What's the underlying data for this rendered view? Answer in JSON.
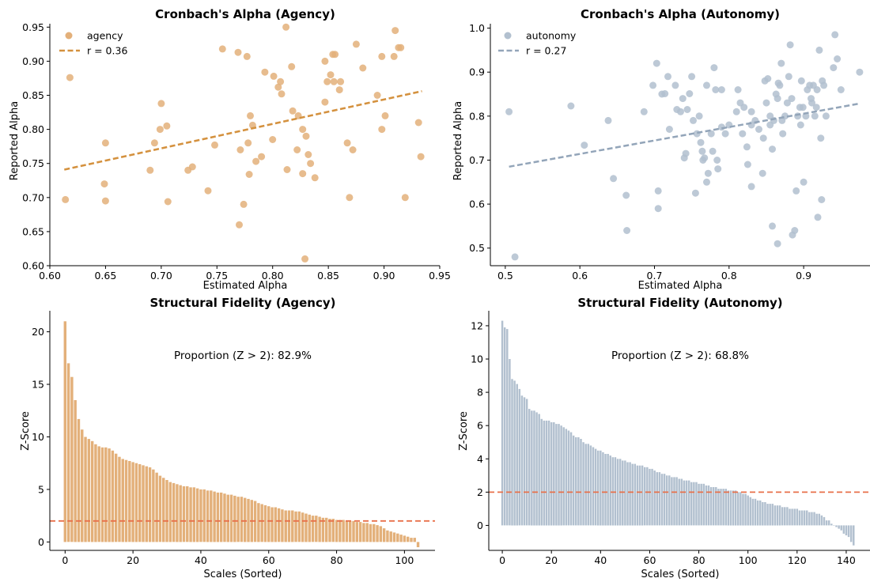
{
  "colors": {
    "agency": "#e3b07a",
    "agency_line": "#d4913e",
    "autonomy": "#b2c0cf",
    "autonomy_line": "#93a5b9",
    "threshold": "#e8704a"
  },
  "chart_data": [
    {
      "id": "alpha_agency",
      "type": "scatter",
      "title": "Cronbach's Alpha (Agency)",
      "xlabel": "Estimated Alpha",
      "ylabel": "Reported Alpha",
      "xlim": [
        0.6,
        0.95
      ],
      "ylim": [
        0.6,
        0.955
      ],
      "xticks": [
        0.6,
        0.65,
        0.7,
        0.75,
        0.8,
        0.85,
        0.9,
        0.95
      ],
      "xtick_labels": [
        "0.60",
        "0.65",
        "0.70",
        "0.75",
        "0.80",
        "0.85",
        "0.90",
        "0.95"
      ],
      "yticks": [
        0.6,
        0.65,
        0.7,
        0.75,
        0.8,
        0.85,
        0.9,
        0.95
      ],
      "ytick_labels": [
        "0.60",
        "0.65",
        "0.70",
        "0.75",
        "0.80",
        "0.85",
        "0.90",
        "0.95"
      ],
      "legend": {
        "position": "top-left",
        "scatter_label": "agency",
        "line_label": "r = 0.36"
      },
      "grid": false,
      "points": [
        [
          0.614,
          0.697
        ],
        [
          0.618,
          0.876
        ],
        [
          0.649,
          0.72
        ],
        [
          0.65,
          0.78
        ],
        [
          0.65,
          0.695
        ],
        [
          0.69,
          0.74
        ],
        [
          0.694,
          0.78
        ],
        [
          0.699,
          0.8
        ],
        [
          0.7,
          0.838
        ],
        [
          0.705,
          0.805
        ],
        [
          0.706,
          0.694
        ],
        [
          0.724,
          0.74
        ],
        [
          0.728,
          0.745
        ],
        [
          0.742,
          0.71
        ],
        [
          0.748,
          0.777
        ],
        [
          0.755,
          0.918
        ],
        [
          0.769,
          0.913
        ],
        [
          0.77,
          0.66
        ],
        [
          0.771,
          0.77
        ],
        [
          0.774,
          0.69
        ],
        [
          0.777,
          0.907
        ],
        [
          0.778,
          0.78
        ],
        [
          0.779,
          0.734
        ],
        [
          0.78,
          0.82
        ],
        [
          0.782,
          0.806
        ],
        [
          0.785,
          0.753
        ],
        [
          0.79,
          0.76
        ],
        [
          0.793,
          0.884
        ],
        [
          0.8,
          0.785
        ],
        [
          0.801,
          0.878
        ],
        [
          0.805,
          0.862
        ],
        [
          0.807,
          0.87
        ],
        [
          0.808,
          0.852
        ],
        [
          0.812,
          0.95
        ],
        [
          0.813,
          0.741
        ],
        [
          0.817,
          0.892
        ],
        [
          0.818,
          0.827
        ],
        [
          0.822,
          0.77
        ],
        [
          0.823,
          0.82
        ],
        [
          0.827,
          0.735
        ],
        [
          0.827,
          0.8
        ],
        [
          0.829,
          0.61
        ],
        [
          0.83,
          0.79
        ],
        [
          0.832,
          0.763
        ],
        [
          0.834,
          0.75
        ],
        [
          0.838,
          0.729
        ],
        [
          0.847,
          0.84
        ],
        [
          0.847,
          0.9
        ],
        [
          0.849,
          0.87
        ],
        [
          0.852,
          0.88
        ],
        [
          0.854,
          0.91
        ],
        [
          0.855,
          0.87
        ],
        [
          0.856,
          0.91
        ],
        [
          0.86,
          0.858
        ],
        [
          0.861,
          0.87
        ],
        [
          0.867,
          0.78
        ],
        [
          0.869,
          0.7
        ],
        [
          0.872,
          0.77
        ],
        [
          0.875,
          0.925
        ],
        [
          0.881,
          0.89
        ],
        [
          0.894,
          0.85
        ],
        [
          0.898,
          0.8
        ],
        [
          0.898,
          0.907
        ],
        [
          0.901,
          0.82
        ],
        [
          0.909,
          0.907
        ],
        [
          0.91,
          0.945
        ],
        [
          0.913,
          0.92
        ],
        [
          0.915,
          0.92
        ],
        [
          0.919,
          0.7
        ],
        [
          0.931,
          0.81
        ],
        [
          0.933,
          0.76
        ]
      ],
      "fit": {
        "x": [
          0.613,
          0.934
        ],
        "y": [
          0.741,
          0.856
        ]
      }
    },
    {
      "id": "alpha_autonomy",
      "type": "scatter",
      "title": "Cronbach's Alpha (Autonomy)",
      "xlabel": "Estimated Alpha",
      "ylabel": "Reported Alpha",
      "xlim": [
        0.48,
        0.99
      ],
      "ylim": [
        0.46,
        1.01
      ],
      "xticks": [
        0.5,
        0.6,
        0.7,
        0.8,
        0.9
      ],
      "xtick_labels": [
        "0.5",
        "0.6",
        "0.7",
        "0.8",
        "0.9"
      ],
      "yticks": [
        0.5,
        0.6,
        0.7,
        0.8,
        0.9,
        1.0
      ],
      "ytick_labels": [
        "0.5",
        "0.6",
        "0.7",
        "0.8",
        "0.9",
        "1.0"
      ],
      "legend": {
        "position": "top-left",
        "scatter_label": "autonomy",
        "line_label": "r = 0.27"
      },
      "grid": false,
      "points": [
        [
          0.505,
          0.81
        ],
        [
          0.513,
          0.48
        ],
        [
          0.588,
          0.823
        ],
        [
          0.606,
          0.734
        ],
        [
          0.638,
          0.79
        ],
        [
          0.645,
          0.658
        ],
        [
          0.662,
          0.62
        ],
        [
          0.663,
          0.54
        ],
        [
          0.686,
          0.81
        ],
        [
          0.698,
          0.87
        ],
        [
          0.703,
          0.92
        ],
        [
          0.705,
          0.63
        ],
        [
          0.705,
          0.59
        ],
        [
          0.71,
          0.85
        ],
        [
          0.714,
          0.851
        ],
        [
          0.718,
          0.89
        ],
        [
          0.72,
          0.77
        ],
        [
          0.728,
          0.87
        ],
        [
          0.73,
          0.815
        ],
        [
          0.735,
          0.81
        ],
        [
          0.738,
          0.84
        ],
        [
          0.74,
          0.705
        ],
        [
          0.742,
          0.715
        ],
        [
          0.744,
          0.815
        ],
        [
          0.747,
          0.851
        ],
        [
          0.75,
          0.89
        ],
        [
          0.752,
          0.79
        ],
        [
          0.755,
          0.625
        ],
        [
          0.757,
          0.76
        ],
        [
          0.76,
          0.8
        ],
        [
          0.762,
          0.74
        ],
        [
          0.764,
          0.72
        ],
        [
          0.765,
          0.7
        ],
        [
          0.767,
          0.705
        ],
        [
          0.77,
          0.65
        ],
        [
          0.77,
          0.87
        ],
        [
          0.772,
          0.67
        ],
        [
          0.776,
          0.76
        ],
        [
          0.778,
          0.72
        ],
        [
          0.78,
          0.91
        ],
        [
          0.782,
          0.86
        ],
        [
          0.784,
          0.7
        ],
        [
          0.785,
          0.68
        ],
        [
          0.79,
          0.86
        ],
        [
          0.79,
          0.775
        ],
        [
          0.795,
          0.76
        ],
        [
          0.8,
          0.78
        ],
        [
          0.81,
          0.81
        ],
        [
          0.812,
          0.86
        ],
        [
          0.815,
          0.83
        ],
        [
          0.818,
          0.76
        ],
        [
          0.82,
          0.82
        ],
        [
          0.824,
          0.73
        ],
        [
          0.825,
          0.69
        ],
        [
          0.83,
          0.81
        ],
        [
          0.83,
          0.78
        ],
        [
          0.83,
          0.64
        ],
        [
          0.835,
          0.79
        ],
        [
          0.84,
          0.77
        ],
        [
          0.845,
          0.67
        ],
        [
          0.846,
          0.75
        ],
        [
          0.848,
          0.88
        ],
        [
          0.85,
          0.83
        ],
        [
          0.852,
          0.885
        ],
        [
          0.855,
          0.8
        ],
        [
          0.855,
          0.78
        ],
        [
          0.858,
          0.725
        ],
        [
          0.858,
          0.55
        ],
        [
          0.86,
          0.79
        ],
        [
          0.863,
          0.85
        ],
        [
          0.865,
          0.84
        ],
        [
          0.865,
          0.51
        ],
        [
          0.866,
          0.875
        ],
        [
          0.868,
          0.87
        ],
        [
          0.87,
          0.92
        ],
        [
          0.871,
          0.79
        ],
        [
          0.872,
          0.76
        ],
        [
          0.875,
          0.8
        ],
        [
          0.878,
          0.83
        ],
        [
          0.88,
          0.89
        ],
        [
          0.882,
          0.962
        ],
        [
          0.884,
          0.84
        ],
        [
          0.885,
          0.53
        ],
        [
          0.888,
          0.54
        ],
        [
          0.89,
          0.63
        ],
        [
          0.892,
          0.8
        ],
        [
          0.895,
          0.82
        ],
        [
          0.896,
          0.78
        ],
        [
          0.897,
          0.88
        ],
        [
          0.899,
          0.82
        ],
        [
          0.9,
          0.65
        ],
        [
          0.903,
          0.8
        ],
        [
          0.905,
          0.86
        ],
        [
          0.908,
          0.87
        ],
        [
          0.91,
          0.84
        ],
        [
          0.911,
          0.83
        ],
        [
          0.913,
          0.87
        ],
        [
          0.915,
          0.8
        ],
        [
          0.917,
          0.82
        ],
        [
          0.918,
          0.86
        ],
        [
          0.919,
          0.57
        ],
        [
          0.921,
          0.95
        ],
        [
          0.923,
          0.75
        ],
        [
          0.924,
          0.61
        ],
        [
          0.925,
          0.88
        ],
        [
          0.927,
          0.87
        ],
        [
          0.93,
          0.8
        ],
        [
          0.94,
          0.91
        ],
        [
          0.942,
          0.985
        ],
        [
          0.945,
          0.93
        ],
        [
          0.95,
          0.86
        ],
        [
          0.975,
          0.9
        ]
      ],
      "fit": {
        "x": [
          0.505,
          0.973
        ],
        "y": [
          0.685,
          0.828
        ]
      }
    },
    {
      "id": "fidelity_agency",
      "type": "bar",
      "title": "Structural Fidelity (Agency)",
      "xlabel": "Scales (Sorted)",
      "ylabel": "Z-Score",
      "xlim": [
        -4.5,
        109
      ],
      "ylim": [
        -0.8,
        22
      ],
      "xticks": [
        0,
        20,
        40,
        60,
        80,
        100
      ],
      "yticks": [
        0,
        5,
        10,
        15,
        20
      ],
      "threshold": 2,
      "annotation": "Proportion (Z > 2): 82.9%",
      "values": [
        21.0,
        17.0,
        15.7,
        13.5,
        11.7,
        10.7,
        10.0,
        9.8,
        9.6,
        9.3,
        9.1,
        9.0,
        9.0,
        8.9,
        8.7,
        8.4,
        8.1,
        7.9,
        7.8,
        7.7,
        7.6,
        7.5,
        7.4,
        7.3,
        7.2,
        7.1,
        6.9,
        6.6,
        6.3,
        6.1,
        5.9,
        5.7,
        5.6,
        5.5,
        5.4,
        5.3,
        5.3,
        5.2,
        5.2,
        5.1,
        5.0,
        5.0,
        4.9,
        4.9,
        4.8,
        4.7,
        4.7,
        4.6,
        4.5,
        4.5,
        4.4,
        4.3,
        4.3,
        4.2,
        4.1,
        4.0,
        3.9,
        3.7,
        3.6,
        3.5,
        3.4,
        3.3,
        3.3,
        3.2,
        3.1,
        3.0,
        3.0,
        3.0,
        2.9,
        2.9,
        2.8,
        2.7,
        2.6,
        2.5,
        2.5,
        2.4,
        2.3,
        2.3,
        2.2,
        2.2,
        2.1,
        2.1,
        2.1,
        2.0,
        2.0,
        2.0,
        1.9,
        1.9,
        1.8,
        1.8,
        1.7,
        1.7,
        1.6,
        1.5,
        1.3,
        1.1,
        1.0,
        0.9,
        0.8,
        0.7,
        0.6,
        0.5,
        0.4,
        0.4,
        -0.5
      ]
    },
    {
      "id": "fidelity_autonomy",
      "type": "bar",
      "title": "Structural Fidelity (Autonomy)",
      "xlabel": "Scales (Sorted)",
      "ylabel": "Z-Score",
      "xlim": [
        -5.5,
        150
      ],
      "ylim": [
        -1.5,
        12.9
      ],
      "xticks": [
        0,
        20,
        40,
        60,
        80,
        100,
        120,
        140
      ],
      "yticks": [
        0,
        2,
        4,
        6,
        8,
        10,
        12
      ],
      "threshold": 2,
      "annotation": "Proportion (Z > 2): 68.8%",
      "values": [
        12.3,
        11.9,
        11.8,
        10.0,
        8.8,
        8.7,
        8.5,
        8.2,
        7.8,
        7.7,
        7.6,
        7.0,
        6.9,
        6.9,
        6.8,
        6.7,
        6.4,
        6.3,
        6.3,
        6.3,
        6.2,
        6.2,
        6.1,
        6.1,
        6.0,
        5.9,
        5.8,
        5.7,
        5.6,
        5.4,
        5.3,
        5.3,
        5.2,
        5.0,
        4.9,
        4.9,
        4.8,
        4.7,
        4.6,
        4.5,
        4.5,
        4.4,
        4.3,
        4.3,
        4.2,
        4.1,
        4.1,
        4.0,
        4.0,
        3.9,
        3.9,
        3.8,
        3.8,
        3.7,
        3.7,
        3.6,
        3.6,
        3.6,
        3.5,
        3.5,
        3.4,
        3.4,
        3.3,
        3.2,
        3.2,
        3.1,
        3.1,
        3.0,
        3.0,
        2.9,
        2.9,
        2.9,
        2.8,
        2.8,
        2.7,
        2.7,
        2.7,
        2.6,
        2.6,
        2.6,
        2.5,
        2.5,
        2.5,
        2.4,
        2.4,
        2.3,
        2.3,
        2.3,
        2.2,
        2.2,
        2.2,
        2.2,
        2.1,
        2.1,
        2.1,
        2.1,
        2.0,
        2.0,
        1.9,
        1.9,
        1.8,
        1.7,
        1.6,
        1.6,
        1.5,
        1.5,
        1.4,
        1.4,
        1.3,
        1.3,
        1.3,
        1.2,
        1.2,
        1.2,
        1.1,
        1.1,
        1.1,
        1.0,
        1.0,
        1.0,
        1.0,
        0.9,
        0.9,
        0.9,
        0.9,
        0.8,
        0.8,
        0.8,
        0.7,
        0.7,
        0.6,
        0.5,
        0.3,
        0.3,
        0.1,
        0.0,
        -0.1,
        -0.2,
        -0.3,
        -0.5,
        -0.6,
        -0.7,
        -1.0,
        -1.2
      ]
    }
  ]
}
